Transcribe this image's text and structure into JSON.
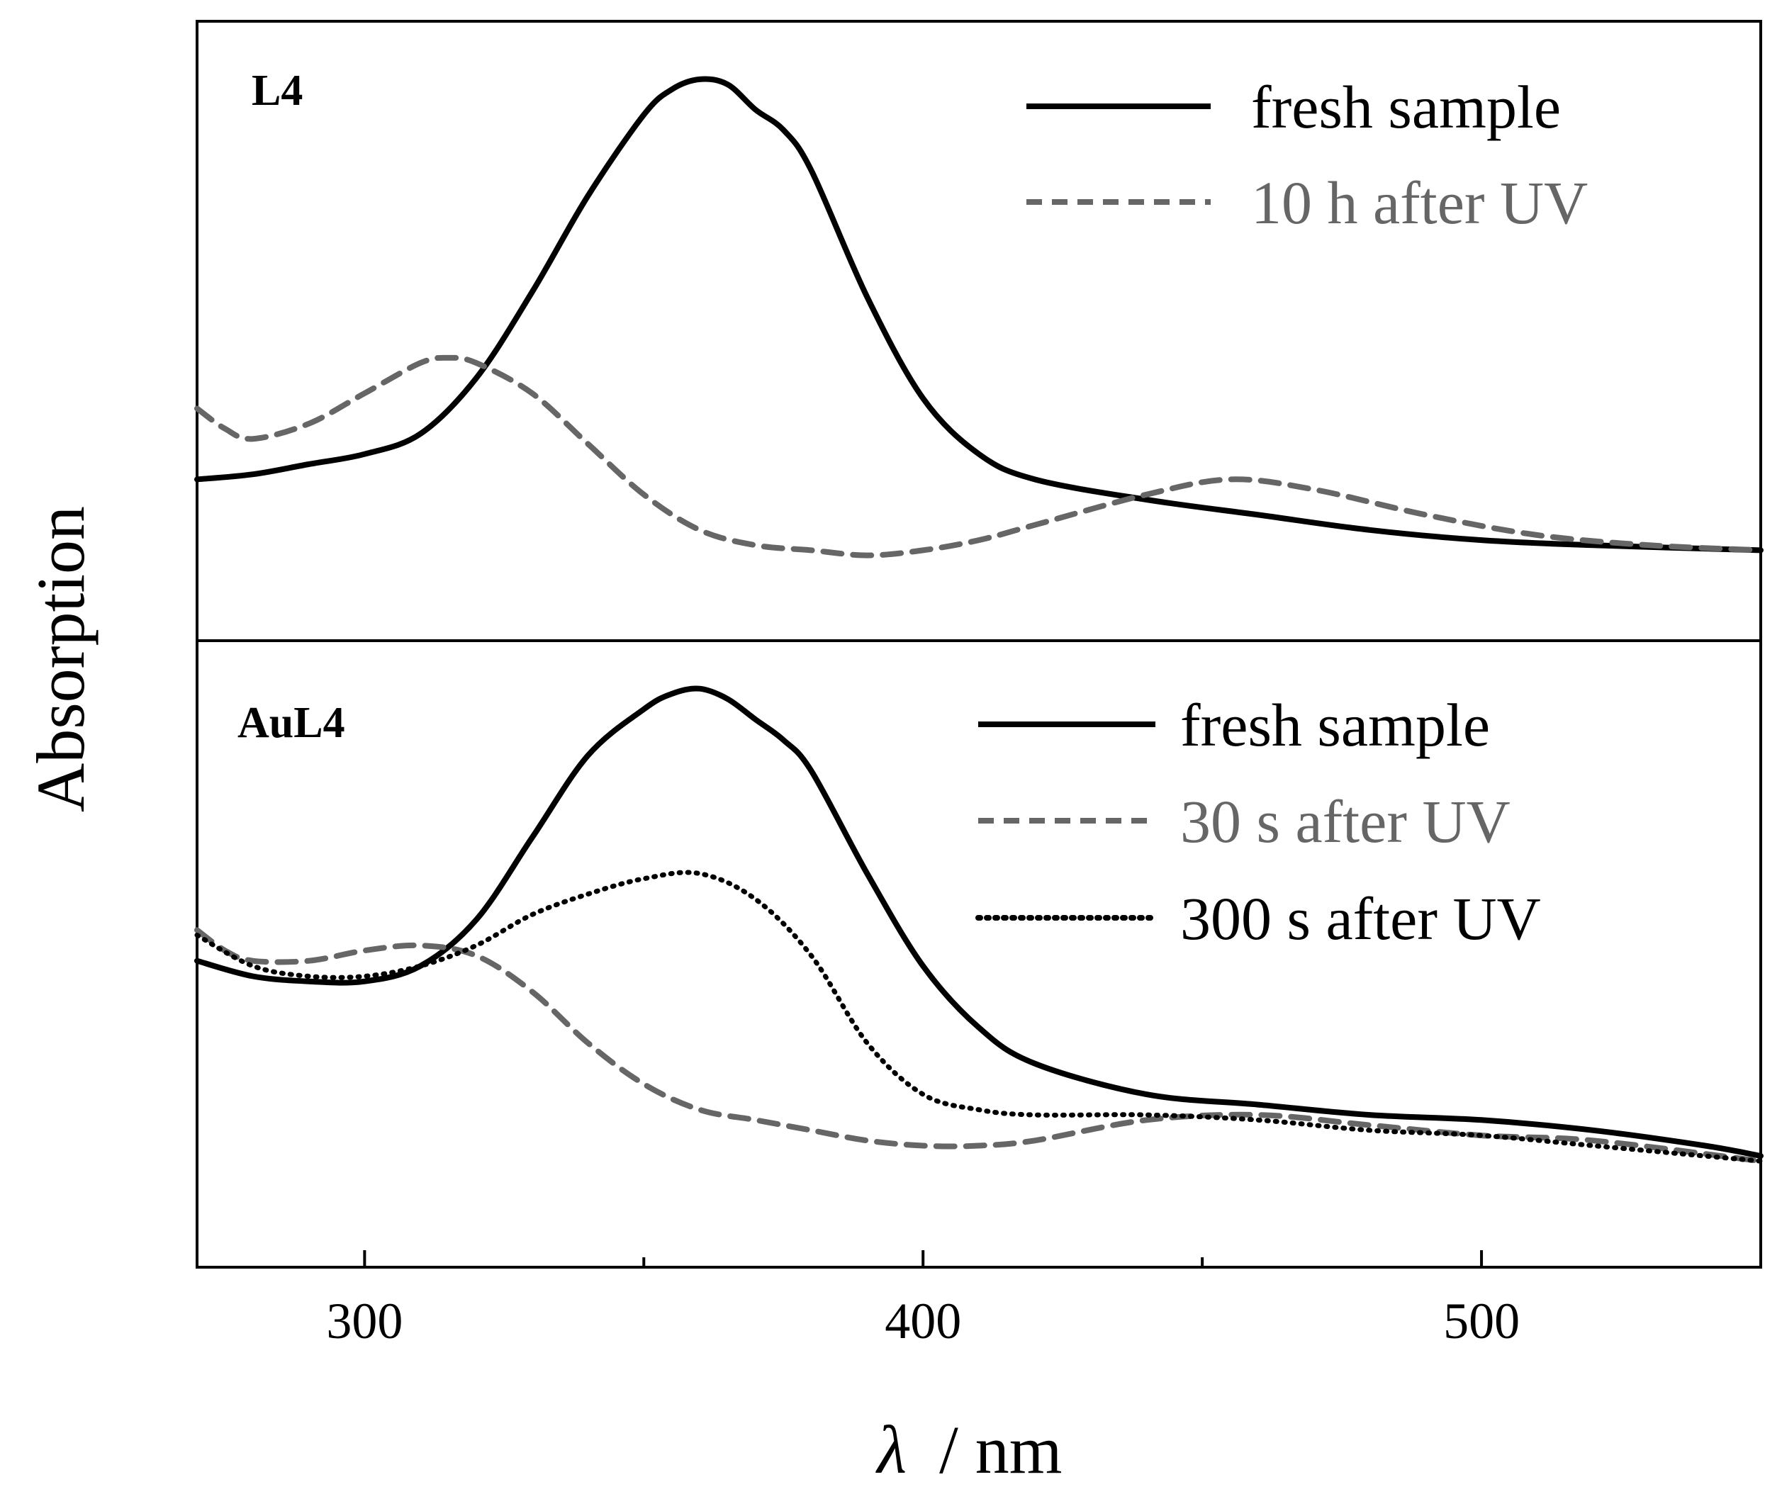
{
  "chart_data": {
    "type": "line",
    "xlabel_symbol": "λ",
    "xlabel_unit": "/ nm",
    "ylabel": "Absorption",
    "xlim": [
      270,
      550
    ],
    "x_ticks": [
      300,
      400,
      500
    ],
    "x_ticks_minor": [
      350,
      450
    ],
    "panels": [
      {
        "label": "L4",
        "ylim": [
          0,
          1
        ],
        "series": [
          {
            "name": "fresh sample",
            "style": "solid",
            "color": "#000000",
            "x": [
              270,
              280,
              290,
              300,
              310,
              320,
              330,
              340,
              350,
              355,
              360,
              365,
              370,
              375,
              380,
              390,
              400,
              410,
              420,
              440,
              460,
              480,
              500,
              520,
              550
            ],
            "y": [
              0.18,
              0.19,
              0.21,
              0.23,
              0.27,
              0.38,
              0.55,
              0.74,
              0.9,
              0.95,
              0.97,
              0.96,
              0.91,
              0.87,
              0.79,
              0.54,
              0.34,
              0.23,
              0.18,
              0.14,
              0.11,
              0.08,
              0.06,
              0.05,
              0.04
            ]
          },
          {
            "name": "10 h after UV",
            "style": "dashed",
            "color": "#666666",
            "x": [
              270,
              275,
              280,
              290,
              300,
              310,
              315,
              320,
              330,
              340,
              350,
              360,
              370,
              380,
              390,
              400,
              410,
              420,
              440,
              455,
              470,
              490,
              510,
              530,
              550
            ],
            "y": [
              0.32,
              0.28,
              0.26,
              0.29,
              0.35,
              0.41,
              0.42,
              0.41,
              0.35,
              0.25,
              0.15,
              0.08,
              0.05,
              0.04,
              0.03,
              0.04,
              0.06,
              0.09,
              0.15,
              0.18,
              0.16,
              0.11,
              0.07,
              0.05,
              0.04
            ]
          }
        ]
      },
      {
        "label": "AuL4",
        "ylim": [
          0,
          1
        ],
        "series": [
          {
            "name": "fresh sample",
            "style": "solid",
            "color": "#000000",
            "x": [
              270,
              280,
              290,
              300,
              310,
              320,
              330,
              340,
              350,
              355,
              360,
              365,
              370,
              375,
              380,
              390,
              400,
              410,
              420,
              440,
              460,
              480,
              500,
              520,
              540,
              550
            ],
            "y": [
              0.46,
              0.43,
              0.42,
              0.42,
              0.45,
              0.54,
              0.7,
              0.86,
              0.95,
              0.98,
              0.99,
              0.97,
              0.93,
              0.89,
              0.83,
              0.63,
              0.45,
              0.33,
              0.26,
              0.2,
              0.18,
              0.16,
              0.15,
              0.13,
              0.1,
              0.08
            ]
          },
          {
            "name": "30 s after UV",
            "style": "dashed",
            "color": "#666666",
            "x": [
              270,
              275,
              280,
              290,
              300,
              310,
              320,
              330,
              340,
              350,
              360,
              370,
              380,
              390,
              400,
              410,
              420,
              440,
              460,
              480,
              500,
              520,
              550
            ],
            "y": [
              0.52,
              0.48,
              0.46,
              0.46,
              0.48,
              0.49,
              0.47,
              0.4,
              0.3,
              0.22,
              0.17,
              0.15,
              0.13,
              0.11,
              0.1,
              0.1,
              0.11,
              0.15,
              0.16,
              0.14,
              0.12,
              0.11,
              0.07
            ]
          },
          {
            "name": "300 s after UV",
            "style": "dotted",
            "color": "#000000",
            "x": [
              270,
              280,
              290,
              300,
              310,
              320,
              330,
              340,
              350,
              360,
              370,
              380,
              390,
              400,
              410,
              420,
              440,
              460,
              480,
              500,
              520,
              550
            ],
            "y": [
              0.51,
              0.45,
              0.43,
              0.43,
              0.45,
              0.49,
              0.55,
              0.59,
              0.62,
              0.63,
              0.58,
              0.47,
              0.3,
              0.2,
              0.17,
              0.16,
              0.16,
              0.15,
              0.13,
              0.12,
              0.1,
              0.07
            ]
          }
        ]
      }
    ]
  }
}
